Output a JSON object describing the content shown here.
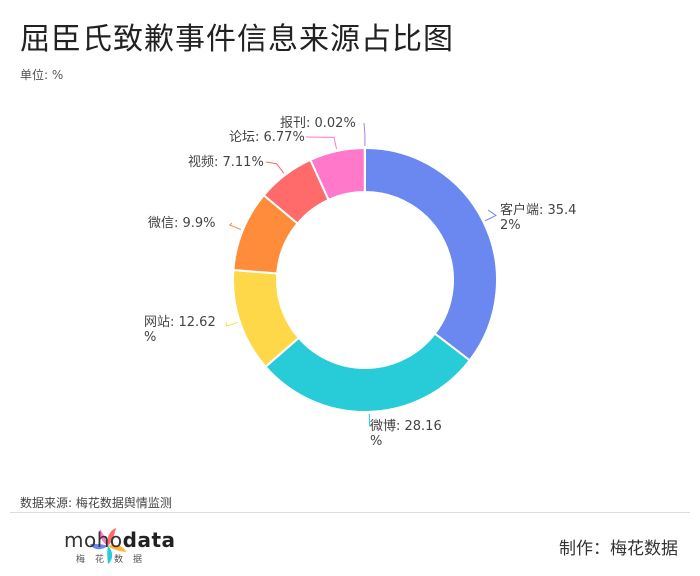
{
  "title": "屈臣氏致歉事件信息来源占比图",
  "unit_label": "单位: %",
  "source_label": "数据来源: 梅花数据舆情监测",
  "footer": {
    "brand_light": "moho",
    "brand_bold": "data",
    "brand_sub": "梅花数据",
    "maker": "制作：梅花数据"
  },
  "chart_data": {
    "type": "pie",
    "donut": true,
    "unit": "%",
    "slices": [
      {
        "name": "客户端",
        "value": 35.42,
        "label_lines": [
          "客户端: 35.4",
          "2%"
        ],
        "color": "#6b87f0"
      },
      {
        "name": "微博",
        "value": 28.16,
        "label_lines": [
          "微博: 28.16",
          "%"
        ],
        "color": "#27ccd8"
      },
      {
        "name": "网站",
        "value": 12.62,
        "label_lines": [
          "网站: 12.62",
          "%"
        ],
        "color": "#ffd84a"
      },
      {
        "name": "微信",
        "value": 9.9,
        "label_lines": [
          "微信: 9.9%"
        ],
        "color": "#ff8c3a"
      },
      {
        "name": "视频",
        "value": 7.11,
        "label_lines": [
          "视频: 7.11%"
        ],
        "color": "#ff6b6b"
      },
      {
        "name": "论坛",
        "value": 6.77,
        "label_lines": [
          "论坛: 6.77%"
        ],
        "color": "#ff78c9"
      },
      {
        "name": "报刊",
        "value": 0.02,
        "label_lines": [
          "报刊: 0.02%"
        ],
        "color": "#b07cf0"
      }
    ]
  }
}
